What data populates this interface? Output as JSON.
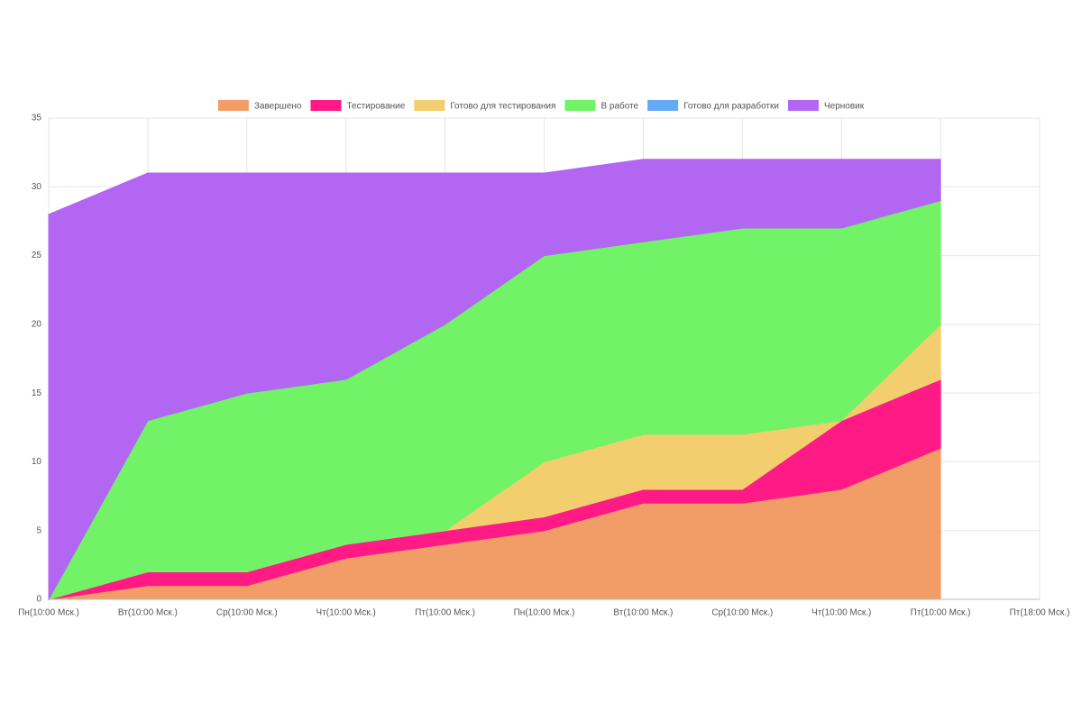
{
  "chart_data": {
    "type": "stacked_area",
    "categories": [
      "Пн(10:00 Мск.)",
      "Вт(10:00 Мск.)",
      "Ср(10:00 Мск.)",
      "Чт(10:00 Мск.)",
      "Пт(10:00 Мск.)",
      "Пн(10:00 Мск.)",
      "Вт(10:00 Мск.)",
      "Ср(10:00 Мск.)",
      "Чт(10:00 Мск.)",
      "Пт(10:00 Мск.)",
      "Пт(18:00 Мск.)"
    ],
    "series": [
      {
        "name": "Завершено",
        "color": "#f29d67",
        "values": [
          0,
          1,
          1,
          3,
          4,
          5,
          7,
          7,
          8,
          11,
          null
        ]
      },
      {
        "name": "Тестирование",
        "color": "#ff1a85",
        "values": [
          0,
          1,
          1,
          1,
          1,
          1,
          1,
          1,
          5,
          5,
          null
        ]
      },
      {
        "name": "Готово для тестирования",
        "color": "#f2ce6e",
        "values": [
          0,
          0,
          0,
          0,
          0,
          4,
          4,
          4,
          0,
          4,
          null
        ]
      },
      {
        "name": "В работе",
        "color": "#72f266",
        "values": [
          0,
          11,
          13,
          12,
          15,
          15,
          14,
          15,
          14,
          9,
          null
        ]
      },
      {
        "name": "Готово для разработки",
        "color": "#64a9f5",
        "values": [
          0,
          0,
          0,
          0,
          0,
          0,
          0,
          0,
          0,
          0,
          null
        ]
      },
      {
        "name": "Черновик",
        "color": "#b266f2",
        "values": [
          28,
          18,
          16,
          15,
          11,
          6,
          6,
          5,
          5,
          3,
          null
        ]
      }
    ],
    "ylim": [
      0,
      35
    ],
    "yticks": [
      0,
      5,
      10,
      15,
      20,
      25,
      30,
      35
    ],
    "grid": true,
    "legend": "top"
  }
}
